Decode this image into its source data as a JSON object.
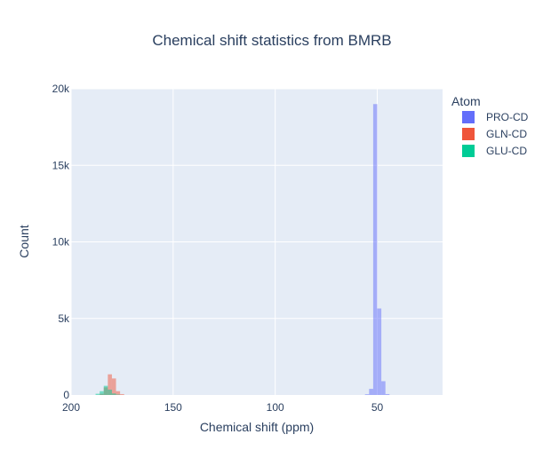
{
  "chart_data": {
    "type": "histogram",
    "title": "Chemical shift statistics from BMRB",
    "xlabel": "Chemical shift (ppm)",
    "ylabel": "Count",
    "x_axis_reversed": true,
    "xlim": [
      200,
      18
    ],
    "ylim": [
      0,
      20000
    ],
    "x_ticks": [
      200,
      150,
      100,
      50
    ],
    "x_tick_labels": [
      "200",
      "150",
      "100",
      "50"
    ],
    "y_ticks": [
      0,
      5000,
      10000,
      15000,
      20000
    ],
    "y_tick_labels": [
      "0",
      "5k",
      "10k",
      "15k",
      "20k"
    ],
    "grid": true,
    "legend": {
      "title": "Atom",
      "position": "right"
    },
    "bin_width": 2,
    "series": [
      {
        "name": "PRO-CD",
        "color": "#636efa",
        "bins": [
          {
            "x0": 54,
            "x1": 56,
            "count": 50
          },
          {
            "x0": 52,
            "x1": 54,
            "count": 400
          },
          {
            "x0": 50,
            "x1": 52,
            "count": 19000
          },
          {
            "x0": 48,
            "x1": 50,
            "count": 5650
          },
          {
            "x0": 46,
            "x1": 48,
            "count": 900
          },
          {
            "x0": 44,
            "x1": 46,
            "count": 60
          }
        ]
      },
      {
        "name": "GLN-CD",
        "color": "#ef553b",
        "bins": [
          {
            "x0": 184,
            "x1": 186,
            "count": 80
          },
          {
            "x0": 182,
            "x1": 184,
            "count": 500
          },
          {
            "x0": 180,
            "x1": 182,
            "count": 1350
          },
          {
            "x0": 178,
            "x1": 180,
            "count": 1080
          },
          {
            "x0": 176,
            "x1": 178,
            "count": 250
          },
          {
            "x0": 174,
            "x1": 176,
            "count": 60
          }
        ]
      },
      {
        "name": "GLU-CD",
        "color": "#00cc96",
        "bins": [
          {
            "x0": 186,
            "x1": 188,
            "count": 80
          },
          {
            "x0": 184,
            "x1": 186,
            "count": 250
          },
          {
            "x0": 182,
            "x1": 184,
            "count": 600
          },
          {
            "x0": 180,
            "x1": 182,
            "count": 350
          },
          {
            "x0": 178,
            "x1": 180,
            "count": 100
          },
          {
            "x0": 176,
            "x1": 178,
            "count": 30
          }
        ]
      }
    ]
  }
}
